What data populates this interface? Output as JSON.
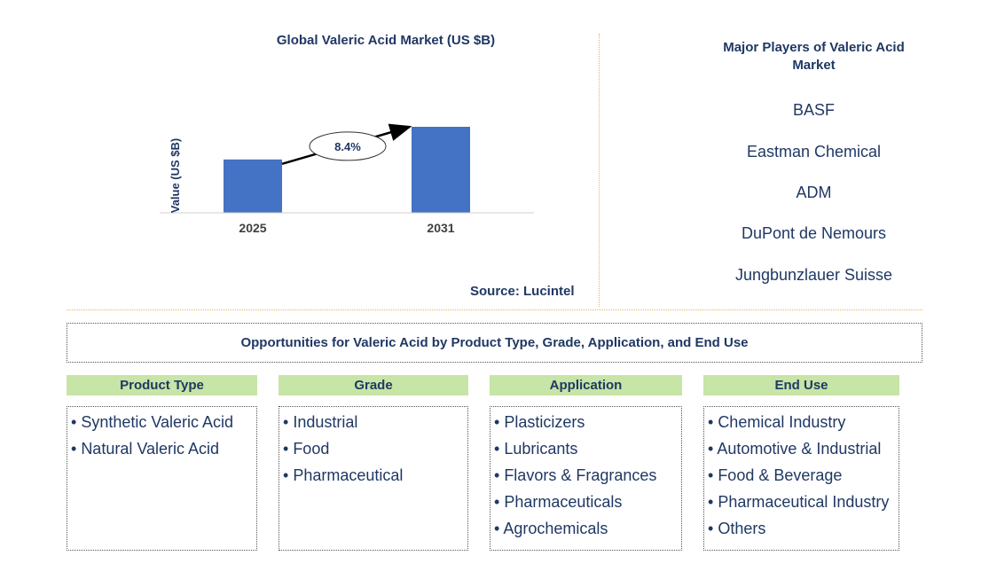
{
  "chart_data": {
    "type": "bar",
    "title": "Global Valeric Acid Market (US $B)",
    "categories": [
      "2025",
      "2031"
    ],
    "values": [
      0.62,
      1.0
    ],
    "ylabel": "Value (US $B)",
    "xlabel": "",
    "ylim": [
      0,
      1.0
    ],
    "annotation": "8.4%",
    "source": "Source: Lucintel",
    "bar_color": "#4472c4"
  },
  "players": {
    "title": "Major Players of Valeric Acid Market",
    "items": [
      "BASF",
      "Eastman Chemical",
      "ADM",
      "DuPont de Nemours",
      "Jungbunzlauer Suisse"
    ]
  },
  "opportunities": {
    "title": "Opportunities for Valeric Acid by Product Type, Grade, Application, and End Use",
    "header_color": "#c6e5a6",
    "categories": [
      {
        "name": "Product Type",
        "items": [
          "Synthetic Valeric Acid",
          "Natural Valeric Acid"
        ]
      },
      {
        "name": "Grade",
        "items": [
          "Industrial",
          "Food",
          "Pharmaceutical"
        ]
      },
      {
        "name": "Application",
        "items": [
          "Plasticizers",
          "Lubricants",
          "Flavors & Fragrances",
          "Pharmaceuticals",
          "Agrochemicals"
        ]
      },
      {
        "name": "End Use",
        "items": [
          "Chemical Industry",
          "Automotive & Industrial",
          "Food & Beverage",
          "Pharmaceutical Industry",
          "Others"
        ]
      }
    ]
  }
}
